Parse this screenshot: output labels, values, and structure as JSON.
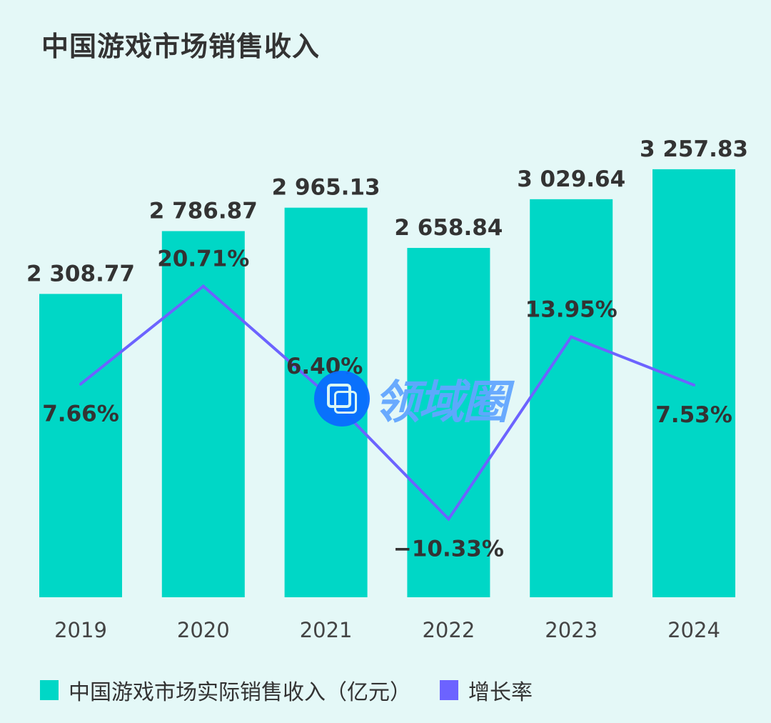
{
  "chart_data": {
    "type": "bar+line",
    "title": "中国游戏市场销售收入",
    "categories": [
      "2019",
      "2020",
      "2021",
      "2022",
      "2023",
      "2024"
    ],
    "series": [
      {
        "name": "中国游戏市场实际销售收入（亿元）",
        "type": "bar",
        "color": "#00d7c6",
        "values": [
          2308.77,
          2786.87,
          2965.13,
          2658.84,
          3029.64,
          3257.83
        ],
        "labels": [
          "2 308.77",
          "2 786.87",
          "2 965.13",
          "2 658.84",
          "3 029.64",
          "3 257.83"
        ]
      },
      {
        "name": "增长率",
        "type": "line",
        "color": "#6c63ff",
        "values": [
          7.66,
          20.71,
          6.4,
          -10.33,
          13.95,
          7.53
        ],
        "labels": [
          "7.66%",
          "20.71%",
          "6.40%",
          "−10.33%",
          "13.95%",
          "7.53%"
        ]
      }
    ],
    "grid": false,
    "legend": "bottom-left"
  },
  "watermark": {
    "text": "领域圈"
  }
}
